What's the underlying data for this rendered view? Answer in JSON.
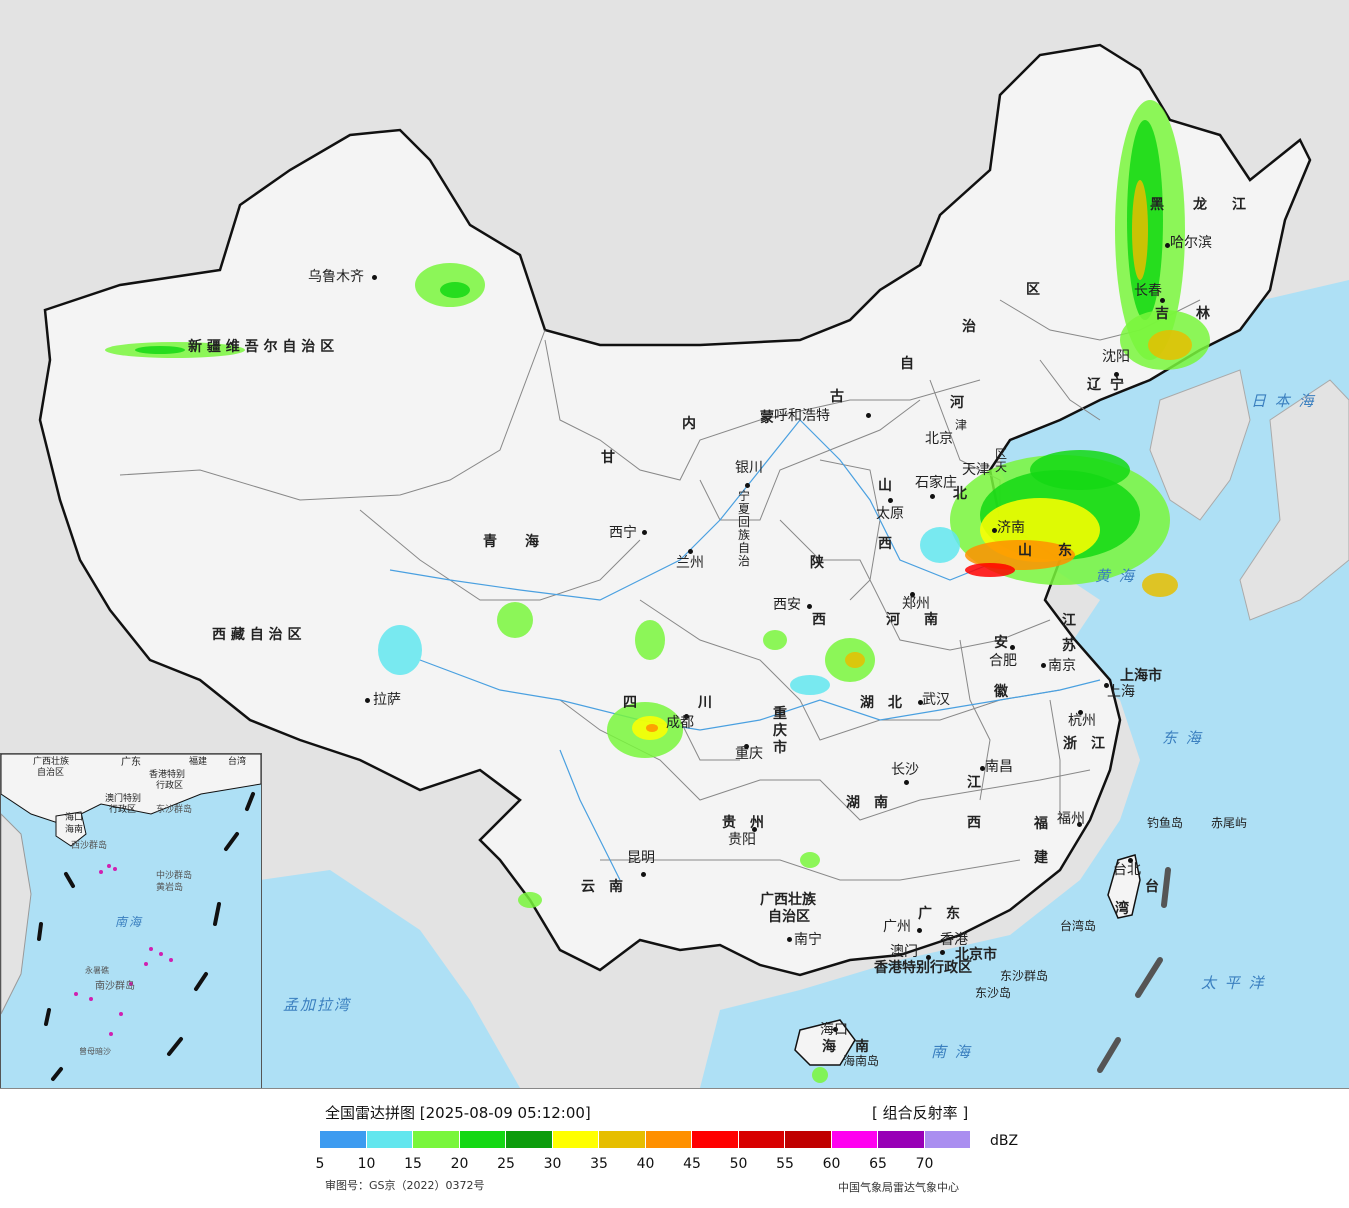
{
  "title": "全国雷达拼图 [2025-08-09 05:12:00]",
  "product": "[ 组合反射率 ]",
  "unit": "dBZ",
  "approval": "审图号：GS京（2022）0372号",
  "publisher": "中国气象局雷达气象中心",
  "colorbar": {
    "colors": [
      "#3d9bf0",
      "#62e6ee",
      "#79f63c",
      "#14d814",
      "#0c9c0c",
      "#ffff00",
      "#e6be00",
      "#ff9000",
      "#ff0000",
      "#d80000",
      "#c00000",
      "#ff00f0",
      "#9800b6",
      "#aa8ef0"
    ],
    "ticks": [
      "5",
      "10",
      "15",
      "20",
      "25",
      "30",
      "35",
      "40",
      "45",
      "50",
      "55",
      "60",
      "65",
      "70"
    ]
  },
  "provinces": [
    {
      "name": "新 疆 维 吾 尔 自 治 区"
    },
    {
      "name": "西 藏 自 治 区"
    },
    {
      "name": "青　　海"
    },
    {
      "name": "甘"
    },
    {
      "name": "内"
    },
    {
      "name": "蒙"
    },
    {
      "name": "古"
    },
    {
      "name": "自"
    },
    {
      "name": "治"
    },
    {
      "name": "区"
    },
    {
      "name": "黑"
    },
    {
      "name": "龙"
    },
    {
      "name": "江"
    },
    {
      "name": "吉"
    },
    {
      "name": "林"
    },
    {
      "name": "辽"
    },
    {
      "name": "宁"
    },
    {
      "name": "河"
    },
    {
      "name": "北"
    },
    {
      "name": "山"
    },
    {
      "name": "西"
    },
    {
      "name": "陕"
    },
    {
      "name": "西"
    },
    {
      "name": "河"
    },
    {
      "name": "南"
    },
    {
      "name": "山"
    },
    {
      "name": "东"
    },
    {
      "name": "江"
    },
    {
      "name": "苏"
    },
    {
      "name": "安"
    },
    {
      "name": "徽"
    },
    {
      "name": "湖　北"
    },
    {
      "name": "湖　南"
    },
    {
      "name": "四"
    },
    {
      "name": "川"
    },
    {
      "name": "重"
    },
    {
      "name": "庆"
    },
    {
      "name": "市"
    },
    {
      "name": "贵　州"
    },
    {
      "name": "云　南"
    },
    {
      "name": "广西壮族"
    },
    {
      "name": "自治区"
    },
    {
      "name": "广　东"
    },
    {
      "name": "江"
    },
    {
      "name": "西"
    },
    {
      "name": "浙　江"
    },
    {
      "name": "福"
    },
    {
      "name": "建"
    },
    {
      "name": "海"
    },
    {
      "name": "南"
    },
    {
      "name": "台"
    },
    {
      "name": "湾"
    },
    {
      "name": "上海市"
    },
    {
      "name": "宁"
    },
    {
      "name": "夏"
    },
    {
      "name": "回"
    },
    {
      "name": "族"
    },
    {
      "name": "自"
    },
    {
      "name": "治"
    },
    {
      "name": "区"
    },
    {
      "name": "天"
    },
    {
      "name": "津"
    },
    {
      "name": "北京市"
    },
    {
      "name": "香港特别行政区"
    },
    {
      "name": "澳门特别行政区"
    }
  ],
  "cities": [
    {
      "name": "乌鲁木齐"
    },
    {
      "name": "拉萨"
    },
    {
      "name": "西宁"
    },
    {
      "name": "兰州"
    },
    {
      "name": "银川"
    },
    {
      "name": "呼和浩特"
    },
    {
      "name": "北京"
    },
    {
      "name": "天津"
    },
    {
      "name": "石家庄"
    },
    {
      "name": "太原"
    },
    {
      "name": "济南"
    },
    {
      "name": "郑州"
    },
    {
      "name": "西安"
    },
    {
      "name": "成都"
    },
    {
      "name": "重庆"
    },
    {
      "name": "武汉"
    },
    {
      "name": "合肥"
    },
    {
      "name": "南京"
    },
    {
      "name": "上海"
    },
    {
      "name": "杭州"
    },
    {
      "name": "长沙"
    },
    {
      "name": "南昌"
    },
    {
      "name": "福州"
    },
    {
      "name": "贵阳"
    },
    {
      "name": "昆明"
    },
    {
      "name": "南宁"
    },
    {
      "name": "广州"
    },
    {
      "name": "澳门"
    },
    {
      "name": "香港"
    },
    {
      "name": "海口"
    },
    {
      "name": "台北"
    },
    {
      "name": "沈阳"
    },
    {
      "name": "长春"
    },
    {
      "name": "哈尔滨"
    }
  ],
  "seas": [
    {
      "name": "日 本 海"
    },
    {
      "name": "黄 海"
    },
    {
      "name": "东 海"
    },
    {
      "name": "太 平 洋"
    },
    {
      "name": "南 海"
    },
    {
      "name": "孟加拉湾"
    }
  ],
  "islands": [
    {
      "name": "钓鱼岛"
    },
    {
      "name": "赤尾屿"
    },
    {
      "name": "台湾岛"
    },
    {
      "name": "东沙群岛"
    },
    {
      "name": "东沙岛"
    },
    {
      "name": "海南岛"
    }
  ],
  "inset": {
    "labels": [
      "广西壮族",
      "自治区",
      "广东",
      "福建",
      "台湾",
      "香港特别",
      "行政区",
      "澳门特别",
      "行政区",
      "海口",
      "海南",
      "西沙群岛",
      "东沙群岛",
      "中沙群岛",
      "黄岩岛",
      "南海",
      "南沙群岛",
      "永暑礁",
      "曾母暗沙"
    ]
  }
}
